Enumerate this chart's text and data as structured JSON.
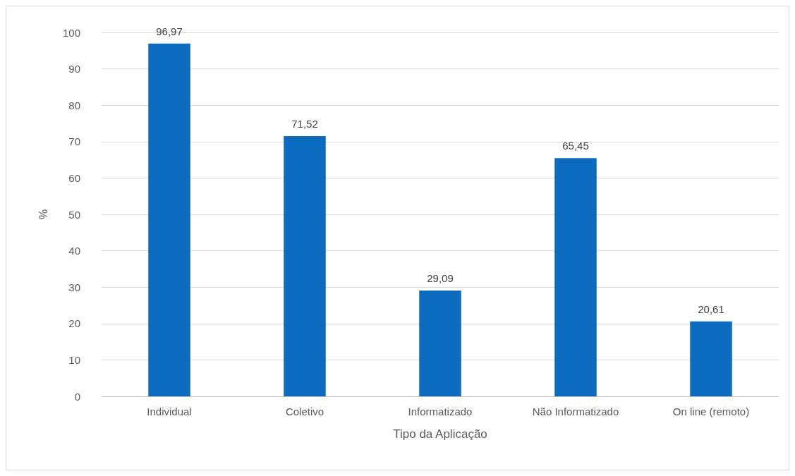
{
  "chart_data": {
    "type": "bar",
    "xlabel": "Tipo da Aplicação",
    "ylabel": "%",
    "categories": [
      "Individual",
      "Coletivo",
      "Informatizado",
      "Não Informatizado",
      "On line (remoto)"
    ],
    "values": [
      96.97,
      71.52,
      29.09,
      65.45,
      20.61
    ],
    "value_labels": [
      "96,97",
      "71,52",
      "29,09",
      "65,45",
      "20,61"
    ],
    "color": "#0b6cbf",
    "ylim": [
      0,
      100
    ],
    "yticks": [
      0,
      10,
      20,
      30,
      40,
      50,
      60,
      70,
      80,
      90,
      100
    ],
    "grid": "y"
  }
}
